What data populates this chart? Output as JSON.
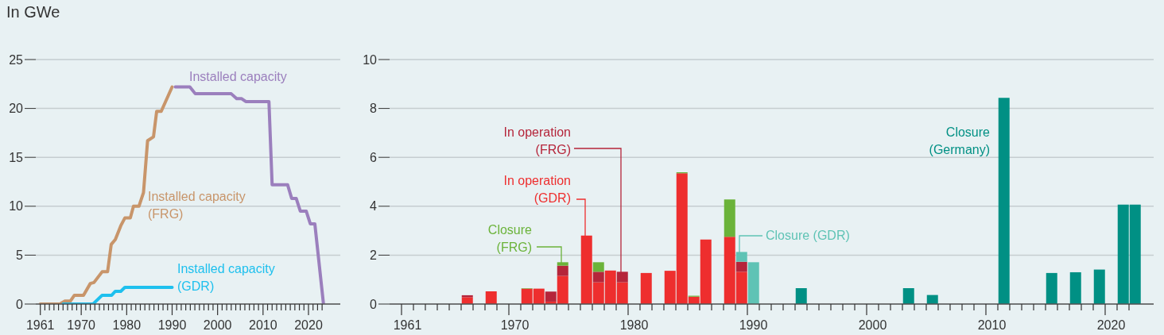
{
  "chart_data": [
    {
      "type": "line",
      "ylabel": "In GWe",
      "xlim": [
        1960,
        2027
      ],
      "ylim": [
        0,
        25
      ],
      "yticks": [
        0,
        5,
        10,
        15,
        20,
        25
      ],
      "grid": "y",
      "xticks": [
        1961,
        {
          "value": 1962,
          "label": null
        },
        {
          "value": 1963,
          "label": null
        },
        {
          "value": 1964,
          "label": null
        },
        {
          "value": 1965,
          "label": null
        },
        {
          "value": 1966,
          "label": null
        },
        {
          "value": 1967,
          "label": null
        },
        {
          "value": 1968,
          "label": null
        },
        {
          "value": 1969,
          "label": null
        },
        1970,
        {
          "value": 1971,
          "label": null
        },
        {
          "value": 1972,
          "label": null
        },
        {
          "value": 1973,
          "label": null
        },
        {
          "value": 1974,
          "label": null
        },
        {
          "value": 1975,
          "label": null
        },
        {
          "value": 1976,
          "label": null
        },
        {
          "value": 1977,
          "label": null
        },
        {
          "value": 1978,
          "label": null
        },
        {
          "value": 1979,
          "label": null
        },
        1980,
        {
          "value": 1981,
          "label": null
        },
        {
          "value": 1982,
          "label": null
        },
        {
          "value": 1983,
          "label": null
        },
        {
          "value": 1984,
          "label": null
        },
        {
          "value": 1985,
          "label": null
        },
        {
          "value": 1986,
          "label": null
        },
        {
          "value": 1987,
          "label": null
        },
        {
          "value": 1988,
          "label": null
        },
        {
          "value": 1989,
          "label": null
        },
        1990,
        {
          "value": 1991,
          "label": null
        },
        {
          "value": 1992,
          "label": null
        },
        {
          "value": 1993,
          "label": null
        },
        {
          "value": 1994,
          "label": null
        },
        {
          "value": 1995,
          "label": null
        },
        {
          "value": 1996,
          "label": null
        },
        {
          "value": 1997,
          "label": null
        },
        {
          "value": 1998,
          "label": null
        },
        {
          "value": 1999,
          "label": null
        },
        2000,
        {
          "value": 2001,
          "label": null
        },
        {
          "value": 2002,
          "label": null
        },
        {
          "value": 2003,
          "label": null
        },
        {
          "value": 2004,
          "label": null
        },
        {
          "value": 2005,
          "label": null
        },
        {
          "value": 2006,
          "label": null
        },
        {
          "value": 2007,
          "label": null
        },
        {
          "value": 2008,
          "label": null
        },
        {
          "value": 2009,
          "label": null
        },
        2010,
        {
          "value": 2011,
          "label": null
        },
        {
          "value": 2012,
          "label": null
        },
        {
          "value": 2013,
          "label": null
        },
        {
          "value": 2014,
          "label": null
        },
        {
          "value": 2015,
          "label": null
        },
        {
          "value": 2016,
          "label": null
        },
        {
          "value": 2017,
          "label": null
        },
        {
          "value": 2018,
          "label": null
        },
        {
          "value": 2019,
          "label": null
        },
        2020,
        {
          "value": 2021,
          "label": null
        },
        {
          "value": 2022,
          "label": null
        },
        {
          "value": 2023,
          "label": null
        }
      ],
      "series": [
        {
          "name": "Installed capacity (FRG)",
          "color": "#c8956a",
          "x": [
            1961,
            1965.3,
            1966.4,
            1967.6,
            1968.5,
            1970.5,
            1972,
            1972.8,
            1974.6,
            1975.8,
            1976.6,
            1977.5,
            1978.7,
            1979.6,
            1980.8,
            1981.5,
            1982.7,
            1983.7,
            1984.6,
            1985.9,
            1986.6,
            1987.6,
            1990
          ],
          "values": [
            0,
            0,
            0.3,
            0.3,
            0.9,
            0.9,
            2.1,
            2.2,
            3.3,
            3.3,
            6.1,
            6.6,
            8.0,
            8.8,
            8.8,
            10.0,
            10.0,
            11.4,
            16.7,
            17.1,
            19.7,
            19.7,
            22.2
          ]
        },
        {
          "name": "Installed capacity (GDR)",
          "color": "#1ec0ee",
          "x": [
            1966,
            1972.6,
            1974.6,
            1976.7,
            1977.5,
            1978.7,
            1979.6,
            1990
          ],
          "values": [
            0,
            0,
            0.9,
            0.9,
            1.3,
            1.3,
            1.7,
            1.7
          ]
        },
        {
          "name": "Installed capacity",
          "color": "#9b7fbd",
          "x": [
            1990.7,
            1993.9,
            1995.1,
            2003,
            2004.2,
            2005.3,
            2006.2,
            2011.3,
            2012,
            2015.4,
            2016.3,
            2017.3,
            2018.2,
            2019.5,
            2020.4,
            2021.4,
            2023.3
          ],
          "values": [
            22.2,
            22.2,
            21.5,
            21.5,
            21.0,
            21.0,
            20.7,
            20.7,
            12.2,
            12.2,
            10.8,
            10.8,
            9.5,
            9.5,
            8.2,
            8.2,
            0
          ]
        }
      ]
    },
    {
      "type": "bar",
      "stacked": true,
      "ylim": [
        0,
        10
      ],
      "yticks": [
        0,
        2,
        4,
        6,
        8,
        10
      ],
      "grid": "y",
      "categories": [
        "1961",
        null,
        null,
        null,
        null,
        null,
        null,
        null,
        null,
        "1970",
        null,
        null,
        null,
        null,
        null,
        null,
        null,
        null,
        null,
        "1980",
        null,
        null,
        null,
        null,
        null,
        null,
        null,
        null,
        null,
        "1990",
        null,
        null,
        null,
        null,
        null,
        null,
        null,
        null,
        null,
        "2000",
        null,
        null,
        null,
        null,
        null,
        null,
        null,
        null,
        null,
        "2010",
        null,
        null,
        null,
        null,
        null,
        null,
        null,
        null,
        null,
        "2020",
        null,
        null
      ],
      "series": [
        {
          "name": "In operation (GDR)",
          "color": "#ee2e2e",
          "values": [
            null,
            null,
            null,
            null,
            null,
            0.28,
            null,
            0.52,
            null,
            null,
            0.63,
            0.63,
            0.1,
            1.15,
            null,
            2.8,
            0.89,
            1.37,
            0.89,
            null,
            1.27,
            null,
            1.36,
            5.35,
            0.3,
            2.64,
            null,
            2.75,
            1.32,
            null,
            null,
            null,
            null,
            null,
            null,
            null,
            null,
            null,
            null,
            null,
            null,
            null,
            null,
            null,
            null,
            null,
            null,
            null,
            null,
            null,
            null,
            null,
            null,
            null,
            null,
            null,
            null,
            null,
            null,
            null,
            null,
            null
          ]
        },
        {
          "name": "In operation (FRG)",
          "color": "#b5253a",
          "values": [
            null,
            null,
            null,
            null,
            null,
            0.08,
            null,
            null,
            null,
            null,
            null,
            null,
            0.41,
            0.42,
            null,
            null,
            0.43,
            null,
            0.43,
            null,
            null,
            null,
            null,
            null,
            null,
            null,
            null,
            null,
            0.41,
            null,
            null,
            null,
            null,
            null,
            null,
            null,
            null,
            null,
            null,
            null,
            null,
            null,
            null,
            null,
            null,
            null,
            null,
            null,
            null,
            null,
            null,
            null,
            null,
            null,
            null,
            null,
            null,
            null,
            null,
            null,
            null,
            null
          ]
        },
        {
          "name": "Closure (FRG)",
          "color": "#6bb33a",
          "values": [
            null,
            null,
            null,
            null,
            null,
            null,
            null,
            null,
            null,
            null,
            0.02,
            null,
            null,
            0.14,
            null,
            null,
            0.39,
            null,
            null,
            null,
            null,
            null,
            null,
            0.04,
            0.04,
            null,
            null,
            1.53,
            null,
            null,
            null,
            null,
            null,
            null,
            null,
            null,
            null,
            null,
            null,
            null,
            null,
            null,
            null,
            null,
            null,
            null,
            null,
            null,
            null,
            null,
            null,
            null,
            null,
            null,
            null,
            null,
            null,
            null,
            null,
            null,
            null,
            null
          ]
        },
        {
          "name": "Closure (GDR)",
          "color": "#5fc3b5",
          "values": [
            null,
            null,
            null,
            null,
            null,
            null,
            null,
            null,
            null,
            null,
            null,
            null,
            null,
            null,
            null,
            null,
            null,
            null,
            null,
            null,
            null,
            null,
            null,
            null,
            null,
            null,
            null,
            null,
            0.4,
            1.71,
            null,
            null,
            null,
            null,
            null,
            null,
            null,
            null,
            null,
            null,
            null,
            null,
            null,
            null,
            null,
            null,
            null,
            null,
            null,
            null,
            null,
            null,
            null,
            null,
            null,
            null,
            null,
            null,
            null,
            null,
            null,
            null
          ]
        },
        {
          "name": "Closure (Germany)",
          "color": "#009084",
          "values": [
            null,
            null,
            null,
            null,
            null,
            null,
            null,
            null,
            null,
            null,
            null,
            null,
            null,
            null,
            null,
            null,
            null,
            null,
            null,
            null,
            null,
            null,
            null,
            null,
            null,
            null,
            null,
            null,
            null,
            null,
            null,
            null,
            null,
            0.65,
            null,
            null,
            null,
            null,
            null,
            null,
            null,
            null,
            0.65,
            null,
            0.37,
            null,
            null,
            null,
            null,
            null,
            8.43,
            null,
            null,
            null,
            1.27,
            null,
            1.3,
            null,
            1.41,
            null,
            4.07,
            4.07
          ]
        }
      ]
    }
  ]
}
